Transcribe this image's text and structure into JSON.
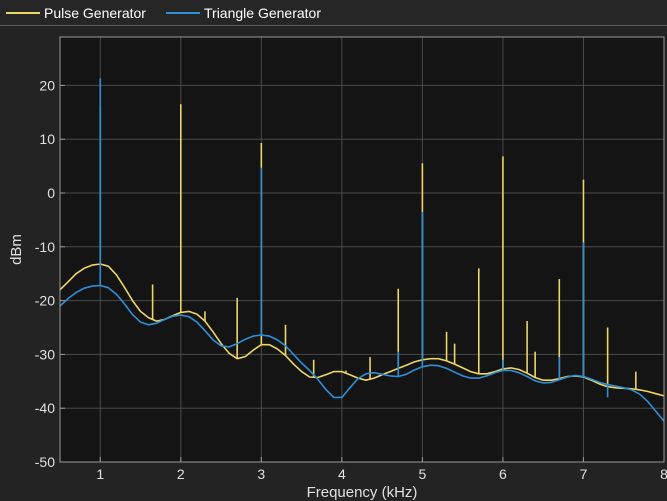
{
  "legend": {
    "items": [
      {
        "label": "Pulse Generator",
        "color": "#edd566"
      },
      {
        "label": "Triangle Generator",
        "color": "#2f8fd6"
      }
    ]
  },
  "chart_data": {
    "type": "line",
    "title": "",
    "xlabel": "Frequency (kHz)",
    "ylabel": "dBm",
    "xlim": [
      0.5,
      8
    ],
    "ylim": [
      -50,
      29
    ],
    "xticks": [
      1,
      2,
      3,
      4,
      5,
      6,
      7,
      8
    ],
    "yticks": [
      20,
      10,
      0,
      -10,
      -20,
      -30,
      -40,
      -50
    ],
    "grid": true,
    "legend_position": "top-left",
    "colors": {
      "background": "#141414",
      "grid": "#4a4a4a",
      "axes": "#9a9a9a"
    },
    "series": [
      {
        "name": "Pulse Generator",
        "color": "#edd566",
        "x": [
          0.5,
          0.6,
          0.7,
          0.8,
          0.9,
          1.0,
          1.1,
          1.2,
          1.3,
          1.4,
          1.5,
          1.6,
          1.7,
          1.8,
          1.9,
          2.0,
          2.1,
          2.2,
          2.3,
          2.4,
          2.5,
          2.6,
          2.7,
          2.8,
          2.9,
          3.0,
          3.1,
          3.2,
          3.3,
          3.4,
          3.5,
          3.6,
          3.7,
          3.8,
          3.9,
          4.0,
          4.1,
          4.2,
          4.3,
          4.4,
          4.5,
          4.6,
          4.7,
          4.8,
          4.9,
          5.0,
          5.1,
          5.2,
          5.3,
          5.4,
          5.5,
          5.6,
          5.7,
          5.8,
          5.9,
          6.0,
          6.1,
          6.2,
          6.3,
          6.4,
          6.5,
          6.6,
          6.7,
          6.8,
          6.9,
          7.0,
          7.1,
          7.2,
          7.3,
          7.4,
          7.5,
          7.6,
          7.7,
          7.8,
          7.9,
          8.0
        ],
        "y": [
          -18,
          -16.5,
          -15,
          -14,
          -13.4,
          -13.2,
          -13.6,
          -15.2,
          -17.5,
          -20,
          -22,
          -23.2,
          -23.8,
          -23.5,
          -22.8,
          -22.2,
          -22,
          -22.5,
          -23.8,
          -25.8,
          -28,
          -29.8,
          -30.8,
          -30.4,
          -29.2,
          -28.2,
          -28.2,
          -29,
          -30.2,
          -31.8,
          -33.2,
          -34.2,
          -34.3,
          -33.8,
          -33.2,
          -33.2,
          -33.8,
          -34.4,
          -34.8,
          -34.4,
          -33.8,
          -33.2,
          -32.6,
          -32,
          -31.4,
          -31,
          -30.8,
          -30.8,
          -31.2,
          -31.8,
          -32.5,
          -33.2,
          -33.6,
          -33.6,
          -33.2,
          -32.7,
          -32.5,
          -32.8,
          -33.5,
          -34.3,
          -34.8,
          -34.8,
          -34.5,
          -34.1,
          -34,
          -34.2,
          -34.8,
          -35.5,
          -36,
          -36.2,
          -36.3,
          -36.4,
          -36.6,
          -36.9,
          -37.3,
          -37.7
        ],
        "spikes": [
          [
            1.0,
            16
          ],
          [
            1.65,
            -17
          ],
          [
            2.0,
            16.5
          ],
          [
            2.3,
            -22
          ],
          [
            2.7,
            -19.5
          ],
          [
            3.0,
            9.3
          ],
          [
            3.3,
            -24.5
          ],
          [
            3.65,
            -31
          ],
          [
            4.05,
            -33
          ],
          [
            4.35,
            -30.5
          ],
          [
            4.7,
            -17.8
          ],
          [
            5.0,
            5.5
          ],
          [
            5.3,
            -25.8
          ],
          [
            5.4,
            -28
          ],
          [
            5.7,
            -14
          ],
          [
            6.0,
            6.8
          ],
          [
            6.3,
            -23.8
          ],
          [
            6.4,
            -29.5
          ],
          [
            6.7,
            -16
          ],
          [
            7.0,
            2.5
          ],
          [
            7.3,
            -25
          ],
          [
            7.65,
            -33.2
          ]
        ]
      },
      {
        "name": "Triangle Generator",
        "color": "#2f8fd6",
        "x": [
          0.5,
          0.6,
          0.7,
          0.8,
          0.9,
          1.0,
          1.1,
          1.2,
          1.3,
          1.4,
          1.5,
          1.6,
          1.7,
          1.8,
          1.9,
          2.0,
          2.1,
          2.2,
          2.3,
          2.4,
          2.5,
          2.6,
          2.7,
          2.8,
          2.9,
          3.0,
          3.1,
          3.2,
          3.3,
          3.4,
          3.5,
          3.6,
          3.7,
          3.8,
          3.9,
          4.0,
          4.1,
          4.2,
          4.3,
          4.4,
          4.5,
          4.6,
          4.7,
          4.8,
          4.9,
          5.0,
          5.1,
          5.2,
          5.3,
          5.4,
          5.5,
          5.6,
          5.7,
          5.8,
          5.9,
          6.0,
          6.1,
          6.2,
          6.3,
          6.4,
          6.5,
          6.6,
          6.7,
          6.8,
          6.9,
          7.0,
          7.1,
          7.2,
          7.3,
          7.4,
          7.5,
          7.6,
          7.7,
          7.8,
          7.9,
          8.0
        ],
        "y": [
          -21,
          -19.6,
          -18.5,
          -17.7,
          -17.3,
          -17.2,
          -17.6,
          -18.8,
          -20.6,
          -22.6,
          -24,
          -24.5,
          -24.2,
          -23.5,
          -22.9,
          -22.7,
          -23,
          -24,
          -25.6,
          -27.3,
          -28.4,
          -28.6,
          -28,
          -27.2,
          -26.6,
          -26.4,
          -26.6,
          -27.3,
          -28.4,
          -30,
          -31.6,
          -33,
          -34.6,
          -36.5,
          -38,
          -38,
          -36.2,
          -34.5,
          -33.6,
          -33.4,
          -33.7,
          -34,
          -34.1,
          -33.7,
          -32.9,
          -32.3,
          -32,
          -32.1,
          -32.6,
          -33.3,
          -34,
          -34.4,
          -34.4,
          -34,
          -33.4,
          -33,
          -33,
          -33.4,
          -34.1,
          -34.9,
          -35.3,
          -35.2,
          -34.7,
          -34.2,
          -33.9,
          -34.1,
          -34.6,
          -35.2,
          -35.6,
          -35.9,
          -36.2,
          -36.6,
          -37.4,
          -38.8,
          -40.6,
          -42.4
        ],
        "spikes": [
          [
            1.0,
            21.3
          ],
          [
            3.0,
            4.7
          ],
          [
            4.7,
            -29.5
          ],
          [
            5.0,
            -3.5
          ],
          [
            6.0,
            -31
          ],
          [
            6.7,
            -30.5
          ],
          [
            7.0,
            -9.2
          ],
          [
            7.3,
            -38
          ]
        ]
      }
    ]
  }
}
